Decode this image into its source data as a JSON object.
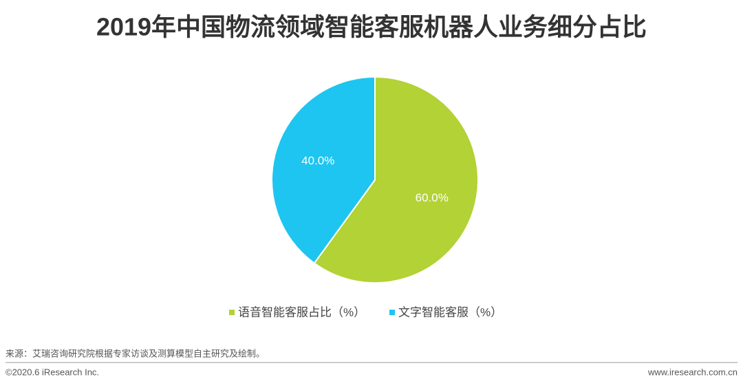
{
  "chart_data": {
    "type": "pie",
    "title": "2019年中国物流领域智能客服机器人业务细分占比",
    "categories": [
      "语音智能客服占比（%）",
      "文字智能客服（%）"
    ],
    "values": [
      60,
      40
    ],
    "value_labels": [
      "60.0%",
      "40.0%"
    ],
    "colors": [
      "#b2d235",
      "#1ec5f0"
    ]
  },
  "source": "来源：艾瑞咨询研究院根据专家访谈及测算模型自主研究及绘制。",
  "footer": {
    "copyright": "©2020.6 iResearch Inc.",
    "website": "www.iresearch.com.cn"
  }
}
